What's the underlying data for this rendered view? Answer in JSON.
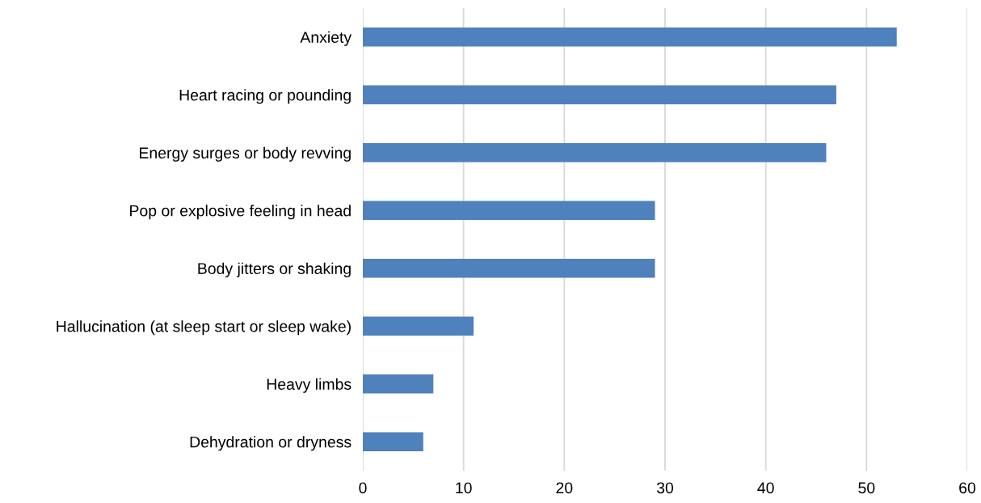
{
  "chart_data": {
    "type": "bar",
    "orientation": "horizontal",
    "categories": [
      "Anxiety",
      "Heart racing or pounding",
      "Energy surges or body revving",
      "Pop or explosive feeling in head",
      "Body jitters or shaking",
      "Hallucination (at sleep start or sleep wake)",
      "Heavy limbs",
      "Dehydration or dryness"
    ],
    "values": [
      53,
      47,
      46,
      29,
      29,
      11,
      7,
      6
    ],
    "color": "#4f81bd",
    "xlim": [
      0,
      60
    ],
    "xticks": [
      0,
      10,
      20,
      30,
      40,
      50,
      60
    ],
    "grid": "x",
    "legend": false
  }
}
